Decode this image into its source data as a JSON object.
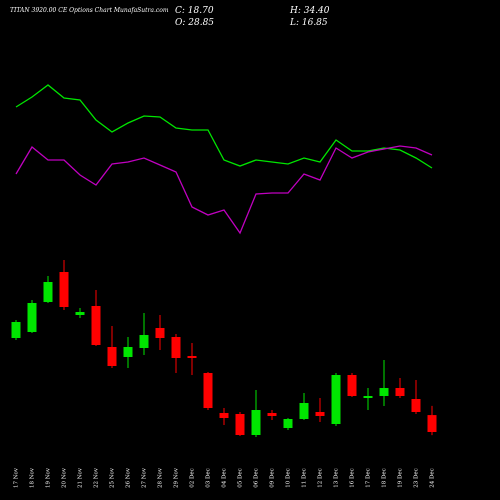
{
  "header": {
    "title": "TITAN 3920.00 CE Options Chart MunafaSutra.com",
    "close": "C: 18.70",
    "high": "H: 34.40",
    "open": "O: 28.85",
    "low": "L: 16.85"
  },
  "chart_data": [
    {
      "type": "line",
      "ylim": [
        0,
        250
      ],
      "series": [
        {
          "color": "#00e600",
          "values": [
            143,
            153,
            165,
            152,
            150,
            130,
            118,
            127,
            134,
            133,
            122,
            120,
            120,
            90,
            84,
            90,
            88,
            86,
            92,
            88,
            110,
            99,
            99,
            102,
            100,
            92,
            82
          ]
        },
        {
          "color": "#c000c0",
          "values": [
            76,
            103,
            90,
            90,
            75,
            65,
            86,
            88,
            92,
            85,
            78,
            43,
            35,
            40,
            17,
            56,
            57,
            57,
            76,
            70,
            102,
            92,
            98,
            101,
            104,
            102,
            95
          ]
        }
      ]
    },
    {
      "type": "candlestick",
      "ylim": [
        13.9,
        127.9
      ],
      "up_color": "#00e600",
      "down_color": "#ff0000",
      "categories": [
        "17 Nov",
        "18 Nov",
        "19 Nov",
        "20 Nov",
        "21 Nov",
        "22 Nov",
        "25 Nov",
        "26 Nov",
        "27 Nov",
        "28 Nov",
        "29 Nov",
        "02 Dec",
        "03 Dec",
        "04 Dec",
        "05 Dec",
        "06 Dec",
        "09 Dec",
        "10 Dec",
        "11 Dec",
        "12 Dec",
        "13 Dec",
        "16 Dec",
        "17 Dec",
        "18 Dec",
        "19 Dec",
        "23 Dec",
        "24 Dec"
      ],
      "open": [
        75.1,
        78.7,
        96.7,
        114.7,
        88.9,
        94.3,
        69.7,
        63.7,
        69.1,
        81.1,
        75.7,
        64.3,
        54.1,
        30.1,
        29.5,
        16.9,
        30.1,
        21.1,
        26.5,
        30.7,
        23.5,
        52.9,
        39.1,
        40.3,
        45.1,
        38.5,
        28.85
      ],
      "high": [
        85.9,
        97.9,
        112.3,
        121.9,
        93.1,
        103.9,
        82.3,
        75.7,
        90.1,
        88.9,
        77.5,
        72.1,
        54.7,
        33.1,
        30.7,
        43.9,
        31.9,
        27.1,
        42.1,
        39.1,
        54.1,
        54.1,
        45.1,
        61.9,
        51.1,
        49.9,
        34.4
      ],
      "low": [
        73.9,
        78.1,
        96.1,
        91.9,
        87.1,
        70.3,
        57.1,
        57.1,
        64.9,
        67.9,
        54.1,
        52.9,
        31.9,
        22.9,
        16.3,
        15.7,
        25.9,
        19.9,
        25.9,
        24.7,
        22.3,
        39.7,
        31.9,
        34.3,
        39.1,
        29.5,
        16.85
      ],
      "close": [
        84.7,
        96.1,
        108.7,
        93.7,
        90.7,
        70.9,
        58.3,
        69.7,
        76.9,
        75.1,
        63.1,
        63.1,
        33.1,
        27.1,
        16.9,
        31.9,
        28.3,
        26.5,
        36.1,
        28.3,
        52.9,
        40.3,
        40.3,
        45.1,
        40.3,
        30.7,
        18.7
      ]
    }
  ]
}
